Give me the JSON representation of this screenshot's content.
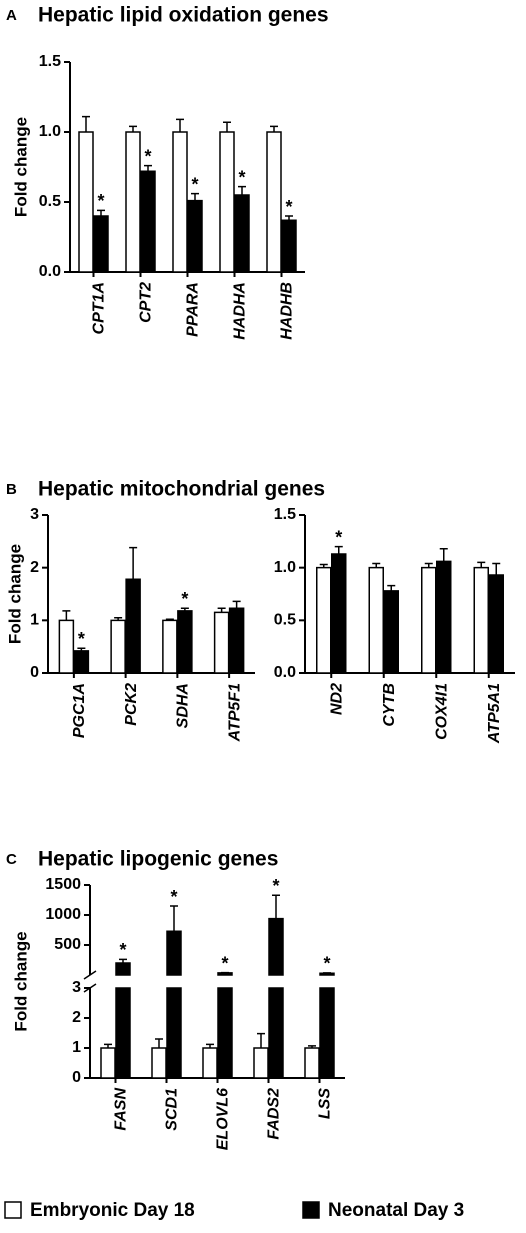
{
  "chart_data": [
    {
      "type": "bar",
      "panel": "A",
      "title": "Hepatic lipid oxidation genes",
      "ylabel": "Fold change",
      "categories": [
        "CPT1A",
        "CPT2",
        "PPARA",
        "HADHA",
        "HADHB"
      ],
      "series": [
        {
          "name": "Embryonic Day 18",
          "color": "#ffffff",
          "values": [
            1,
            1,
            1,
            1,
            1
          ],
          "errors": [
            0.11,
            0.04,
            0.09,
            0.07,
            0.04
          ],
          "markers": [
            null,
            null,
            null,
            null,
            null
          ]
        },
        {
          "name": "Neonatal Day 3",
          "color": "#000000",
          "values": [
            0.4,
            0.72,
            0.51,
            0.55,
            0.37
          ],
          "errors": [
            0.04,
            0.04,
            0.05,
            0.06,
            0.03
          ],
          "markers": [
            "*",
            "*",
            "*",
            "*",
            "*"
          ]
        }
      ],
      "ylim": [
        0,
        1.5
      ],
      "yticks": [
        {
          "value": 0,
          "label": "0.0"
        },
        0.5,
        {
          "value": 1,
          "label": "1.0"
        },
        1.5
      ]
    },
    {
      "type": "bar",
      "panel": "B",
      "title": "Hepatic mitochondrial genes",
      "ylabel": "Fold change",
      "categories": [
        "PGC1A",
        "PCK2",
        "SDHA",
        "ATP5F1"
      ],
      "series": [
        {
          "name": "Embryonic Day 18",
          "color": "#ffffff",
          "values": [
            1,
            1,
            1,
            1.15
          ],
          "errors": [
            0.18,
            0.05,
            0.02,
            0.08
          ],
          "markers": [
            null,
            null,
            null,
            null
          ]
        },
        {
          "name": "Neonatal Day 3",
          "color": "#000000",
          "values": [
            0.42,
            1.78,
            1.18,
            1.23
          ],
          "errors": [
            0.05,
            0.6,
            0.05,
            0.13
          ],
          "markers": [
            "*",
            null,
            "*",
            null
          ]
        }
      ],
      "ylim": [
        0,
        3
      ],
      "yticks": [
        0,
        1,
        2,
        3
      ]
    },
    {
      "type": "bar",
      "categories": [
        "ND2",
        "CYTB",
        "COX4I1",
        "ATP5A1"
      ],
      "series": [
        {
          "name": "Embryonic Day 18",
          "color": "#ffffff",
          "values": [
            1,
            1,
            1,
            1
          ],
          "errors": [
            0.03,
            0.04,
            0.04,
            0.05
          ],
          "markers": [
            null,
            null,
            null,
            null
          ]
        },
        {
          "name": "Neonatal Day 3",
          "color": "#000000",
          "values": [
            1.13,
            0.78,
            1.06,
            0.93
          ],
          "errors": [
            0.07,
            0.05,
            0.12,
            0.11
          ],
          "markers": [
            "*",
            null,
            null,
            null
          ]
        }
      ],
      "ylim": [
        0,
        1.5
      ],
      "yticks": [
        {
          "value": 0,
          "label": "0.0"
        },
        0.5,
        {
          "value": 1,
          "label": "1.0"
        },
        1.5
      ]
    },
    {
      "type": "bar",
      "panel": "C",
      "title": "Hepatic lipogenic genes",
      "ylabel": "Fold change",
      "categories": [
        "FASN",
        "SCD1",
        "ELOVL6",
        "FADS2",
        "LSS"
      ],
      "series": [
        {
          "name": "Embryonic Day 18",
          "color": "#ffffff",
          "values": [
            1,
            1,
            1,
            1,
            1
          ],
          "errors": [
            0.12,
            0.3,
            0.12,
            0.48,
            0.07
          ],
          "markers": [
            null,
            null,
            null,
            null,
            null
          ]
        },
        {
          "name": "Neonatal Day 3",
          "color": "#000000",
          "values": [
            200,
            730,
            35,
            940,
            30
          ],
          "errors": [
            60,
            420,
            5,
            390,
            5
          ],
          "markers": [
            "*",
            "*",
            "*",
            "*",
            "*"
          ]
        }
      ],
      "ylim": [
        0,
        3
      ],
      "yticks": [
        0,
        1,
        2,
        3
      ],
      "axis_break": true,
      "ylim_top": [
        0,
        1500
      ],
      "yticks_top": [
        500,
        1000,
        1500
      ]
    }
  ]
}
